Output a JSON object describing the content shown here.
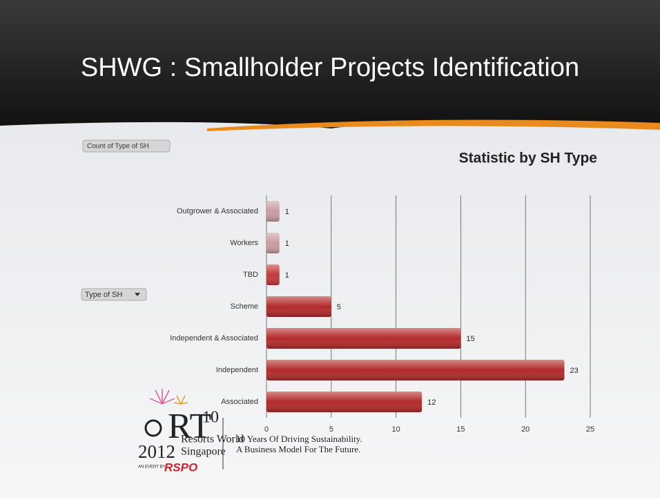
{
  "slide": {
    "title": "SHWG : Smallholder Projects Identification"
  },
  "controls": {
    "count_button": "Count of Type of SH",
    "type_button": "Type of SH"
  },
  "footer": {
    "logo_rt": "RT",
    "logo_num": "10",
    "logo_year": "2012",
    "logo_venue_1": "Resorts World",
    "logo_venue_2": "Singapore",
    "logo_event": "AN EVENT BY",
    "logo_org": "RSPO",
    "tagline_1": "10 Years Of Driving Sustainability.",
    "tagline_2": "A Business Model For The Future."
  },
  "chart_data": {
    "type": "hbar",
    "title": "Statistic by SH Type",
    "categories": [
      "Outgrower & Associated",
      "Workers",
      "TBD",
      "Scheme",
      "Independent & Associated",
      "Independent",
      "Associated"
    ],
    "values": [
      1,
      1,
      1,
      5,
      15,
      23,
      12
    ],
    "colors": [
      "#c99ca0",
      "#c99ca0",
      "#c23a3a",
      "#b32a2a",
      "#b32a2a",
      "#b32a2a",
      "#b32a2a"
    ],
    "xlim": [
      0,
      25
    ],
    "xticks": [
      0,
      5,
      10,
      15,
      20,
      25
    ],
    "grid": true
  }
}
